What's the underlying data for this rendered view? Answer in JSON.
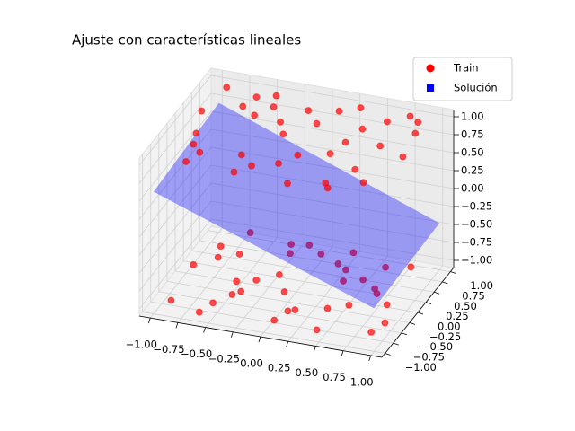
{
  "chart_data": {
    "type": "scatter3d",
    "title": "Ajuste con características lineales",
    "xlim": [
      -1.1,
      1.1
    ],
    "ylim": [
      -1.1,
      1.1
    ],
    "zlim": [
      -1.1,
      1.1
    ],
    "xticks": [
      {
        "value": -1,
        "label": "−1.00"
      },
      {
        "value": -0.75,
        "label": "−0.75"
      },
      {
        "value": -0.5,
        "label": "−0.50"
      },
      {
        "value": -0.25,
        "label": "−0.25"
      },
      {
        "value": 0,
        "label": "0.00"
      },
      {
        "value": 0.25,
        "label": "0.25"
      },
      {
        "value": 0.5,
        "label": "0.50"
      },
      {
        "value": 0.75,
        "label": "0.75"
      },
      {
        "value": 1,
        "label": "1.00"
      }
    ],
    "yticks": [
      {
        "value": -1,
        "label": "−1.00"
      },
      {
        "value": -0.75,
        "label": "−0.75"
      },
      {
        "value": -0.5,
        "label": "−0.50"
      },
      {
        "value": -0.25,
        "label": "−0.25"
      },
      {
        "value": 0,
        "label": "0.00"
      },
      {
        "value": 0.25,
        "label": "0.25"
      },
      {
        "value": 0.5,
        "label": "0.50"
      },
      {
        "value": 0.75,
        "label": "0.75"
      },
      {
        "value": 1,
        "label": "1.00"
      }
    ],
    "zticks": [
      {
        "value": -1,
        "label": "−1.00"
      },
      {
        "value": -0.75,
        "label": "−0.75"
      },
      {
        "value": -0.5,
        "label": "−0.50"
      },
      {
        "value": -0.25,
        "label": "−0.25"
      },
      {
        "value": 0,
        "label": "0.00"
      },
      {
        "value": 0.25,
        "label": "0.25"
      },
      {
        "value": 0.5,
        "label": "0.50"
      },
      {
        "value": 0.75,
        "label": "0.75"
      },
      {
        "value": 1,
        "label": "1.00"
      }
    ],
    "grid": true,
    "legend": "upper right",
    "series": [
      {
        "name": "Train",
        "color": "#ff0000",
        "x": [
          -0.9,
          -0.7,
          -0.5,
          -0.3,
          -0.1,
          0.1,
          0.3,
          0.5,
          0.7,
          0.9,
          -0.85,
          -0.6,
          -0.35,
          -0.15,
          0.2,
          0.45,
          0.65,
          0.85,
          -0.95,
          -0.75,
          -0.45,
          -0.2,
          0.05,
          0.35,
          0.6,
          0.8,
          0.95,
          -0.65,
          -0.25,
          0.15,
          0.55,
          -0.8,
          -0.4,
          0.0,
          0.4,
          0.75,
          -0.8,
          -0.55,
          -0.3,
          -0.05,
          0.2,
          0.45,
          0.7,
          0.95,
          -0.9,
          -0.65,
          -0.4,
          -0.15,
          0.1,
          0.35,
          0.6,
          0.85,
          -0.7,
          -0.45,
          -0.2,
          0.05,
          0.3,
          0.55,
          0.8,
          -0.95,
          -0.6,
          -0.25,
          0.15,
          0.5,
          0.9,
          -0.85,
          -0.35,
          0.0,
          0.4,
          0.65,
          -0.5,
          0.25
        ],
        "y": [
          0.9,
          -0.6,
          0.4,
          -0.9,
          0.7,
          -0.3,
          0.95,
          -0.8,
          0.2,
          0.6,
          -0.2,
          0.8,
          -0.5,
          0.1,
          -0.95,
          0.5,
          -0.4,
          0.85,
          0.3,
          -0.85,
          0.9,
          -0.7,
          0.45,
          -0.15,
          0.75,
          -0.65,
          0.05,
          0.55,
          0.35,
          0.8,
          -0.9,
          -0.45,
          0.65,
          -0.55,
          0.15,
          0.95,
          0.3,
          -0.7,
          0.85,
          -0.2,
          0.6,
          -0.9,
          0.1,
          -0.5,
          -0.8,
          0.45,
          -0.35,
          0.9,
          -0.6,
          0.25,
          0.7,
          -0.1,
          0.95,
          -0.45,
          0.15,
          -0.85,
          0.5,
          -0.25,
          0.8,
          0.05,
          -0.95,
          0.65,
          -0.55,
          0.35,
          -0.75,
          0.55,
          -0.05,
          0.75,
          -0.4,
          0.2,
          -0.15,
          0.9
        ],
        "z": [
          1,
          1,
          1,
          1,
          1,
          1,
          1,
          1,
          1,
          1,
          1,
          1,
          1,
          1,
          1,
          1,
          1,
          1,
          1,
          1,
          1,
          1,
          1,
          1,
          1,
          1,
          1,
          1,
          1,
          1,
          1,
          1,
          1,
          1,
          1,
          1,
          -1,
          -1,
          -1,
          -1,
          -1,
          -1,
          -1,
          -1,
          -1,
          -1,
          -1,
          -1,
          -1,
          -1,
          -1,
          -1,
          -1,
          -1,
          -1,
          -1,
          -1,
          -1,
          -1,
          -1,
          -1,
          -1,
          -1,
          -1,
          -1,
          -1,
          -1,
          -1,
          -1,
          -1,
          -1,
          -1
        ]
      }
    ],
    "surface": {
      "name": "Solución",
      "color": "#0000ff",
      "x": [
        -1,
        1
      ],
      "y": [
        -1,
        1
      ],
      "z": [
        [
          0.6,
          -0.5
        ],
        [
          0.7,
          -0.45
        ]
      ]
    }
  }
}
